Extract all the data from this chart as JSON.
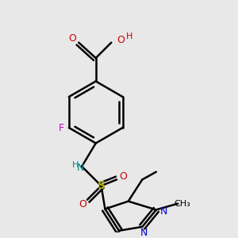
{
  "bg_color": "#e8e8e8",
  "bond_color": "#000000",
  "colors": {
    "N": "#0000cc",
    "O": "#cc0000",
    "F": "#cc00cc",
    "S": "#aaaa00",
    "NH": "#008888",
    "H": "#cc0000"
  },
  "lw": 1.8
}
